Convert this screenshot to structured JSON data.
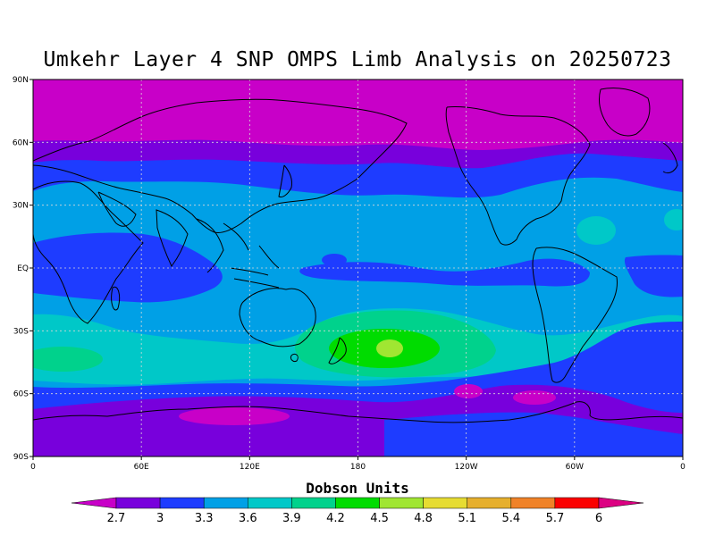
{
  "title": "Umkehr Layer 4 SNP OMPS Limb Analysis on 20250723",
  "colorbar": {
    "title": "Dobson Units",
    "labels": [
      "2.7",
      "3",
      "3.3",
      "3.6",
      "3.9",
      "4.2",
      "4.5",
      "4.8",
      "5.1",
      "5.4",
      "5.7",
      "6"
    ],
    "colors": [
      "#c800c8",
      "#7800dc",
      "#1e3cff",
      "#00a0e6",
      "#00c8c8",
      "#00d28c",
      "#00dc00",
      "#a0e632",
      "#e6dc32",
      "#e6af2d",
      "#f08228",
      "#fa0000",
      "#dc0082"
    ]
  },
  "map": {
    "x_ticks": [
      "0",
      "60E",
      "120E",
      "180",
      "120W",
      "60W",
      "0"
    ],
    "y_ticks": [
      "90N",
      "60N",
      "30N",
      "EQ",
      "30S",
      "60S",
      "90S"
    ]
  },
  "chart_data": {
    "type": "heatmap",
    "title": "Umkehr Layer 4 SNP OMPS Limb Analysis on 20250723",
    "colorbar_label": "Dobson Units",
    "contour_levels": [
      2.7,
      3.0,
      3.3,
      3.6,
      3.9,
      4.2,
      4.5,
      4.8,
      5.1,
      5.4,
      5.7,
      6.0
    ],
    "xlim": [
      0,
      360
    ],
    "ylim": [
      -90,
      90
    ],
    "grid": true,
    "features": [
      {
        "region": "North polar cap (60N-90N)",
        "range": [
          0,
          2.7
        ]
      },
      {
        "region": "Northern mid-latitudes (40N-60N)",
        "range": [
          2.7,
          3.0
        ]
      },
      {
        "region": "Subtropics (10N-35N)",
        "range": [
          3.3,
          3.6
        ]
      },
      {
        "region": "Equatorial band",
        "range": [
          3.0,
          3.3
        ]
      },
      {
        "region": "Southern subtropics (20S-55S)",
        "range": [
          3.6,
          3.9
        ]
      },
      {
        "region": "South Pacific maximum near 195E, 38S",
        "range": [
          4.5,
          4.8
        ]
      },
      {
        "region": "Southern high latitudes (60S-80S)",
        "range": [
          2.7,
          3.0
        ]
      }
    ]
  }
}
